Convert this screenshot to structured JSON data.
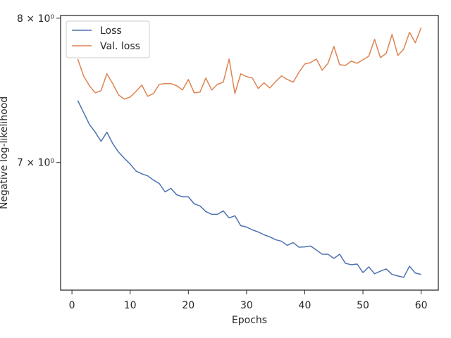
{
  "chart_data": {
    "type": "line",
    "x_label": "Epochs",
    "y_label": "Negative log-likelihood",
    "x": [
      1,
      2,
      3,
      4,
      5,
      6,
      7,
      8,
      9,
      10,
      11,
      12,
      13,
      14,
      15,
      16,
      17,
      18,
      19,
      20,
      21,
      22,
      23,
      24,
      25,
      26,
      27,
      28,
      29,
      30,
      31,
      32,
      33,
      34,
      35,
      36,
      37,
      38,
      39,
      40,
      41,
      42,
      43,
      44,
      45,
      46,
      47,
      48,
      49,
      50,
      51,
      52,
      53,
      54,
      55,
      56,
      57,
      58,
      59,
      60
    ],
    "series": [
      {
        "name": "Loss",
        "color": "#4c72b0",
        "values": [
          7.413,
          7.331,
          7.251,
          7.199,
          7.138,
          7.199,
          7.124,
          7.068,
          7.027,
          6.99,
          6.945,
          6.927,
          6.914,
          6.887,
          6.865,
          6.812,
          6.834,
          6.794,
          6.781,
          6.781,
          6.737,
          6.724,
          6.689,
          6.672,
          6.672,
          6.693,
          6.65,
          6.663,
          6.602,
          6.594,
          6.577,
          6.564,
          6.547,
          6.534,
          6.517,
          6.508,
          6.483,
          6.5,
          6.472,
          6.474,
          6.479,
          6.455,
          6.43,
          6.43,
          6.405,
          6.43,
          6.376,
          6.368,
          6.372,
          6.322,
          6.355,
          6.315,
          6.33,
          6.343,
          6.311,
          6.302,
          6.294,
          6.359,
          6.319,
          6.311
        ]
      },
      {
        "name": "Val. loss",
        "color": "#dd8452",
        "values": [
          7.703,
          7.584,
          7.515,
          7.466,
          7.481,
          7.599,
          7.53,
          7.452,
          7.423,
          7.437,
          7.476,
          7.52,
          7.442,
          7.461,
          7.525,
          7.53,
          7.53,
          7.515,
          7.486,
          7.559,
          7.466,
          7.471,
          7.569,
          7.486,
          7.525,
          7.54,
          7.703,
          7.461,
          7.599,
          7.579,
          7.569,
          7.496,
          7.535,
          7.5,
          7.544,
          7.584,
          7.559,
          7.54,
          7.609,
          7.668,
          7.678,
          7.703,
          7.624,
          7.673,
          7.794,
          7.663,
          7.658,
          7.688,
          7.673,
          7.698,
          7.723,
          7.845,
          7.713,
          7.744,
          7.881,
          7.729,
          7.774,
          7.896,
          7.82,
          7.93
        ]
      }
    ],
    "xlim": [
      -1.95,
      62.95
    ],
    "xticks": [
      0,
      10,
      20,
      30,
      40,
      50,
      60
    ],
    "ylim": [
      6.22,
      8.02
    ],
    "yscale": "log",
    "yticks": [
      {
        "value": 7,
        "label": "7 × 10⁰"
      },
      {
        "value": 8,
        "label": "8 × 10⁰"
      }
    ],
    "legend": "upper left"
  }
}
